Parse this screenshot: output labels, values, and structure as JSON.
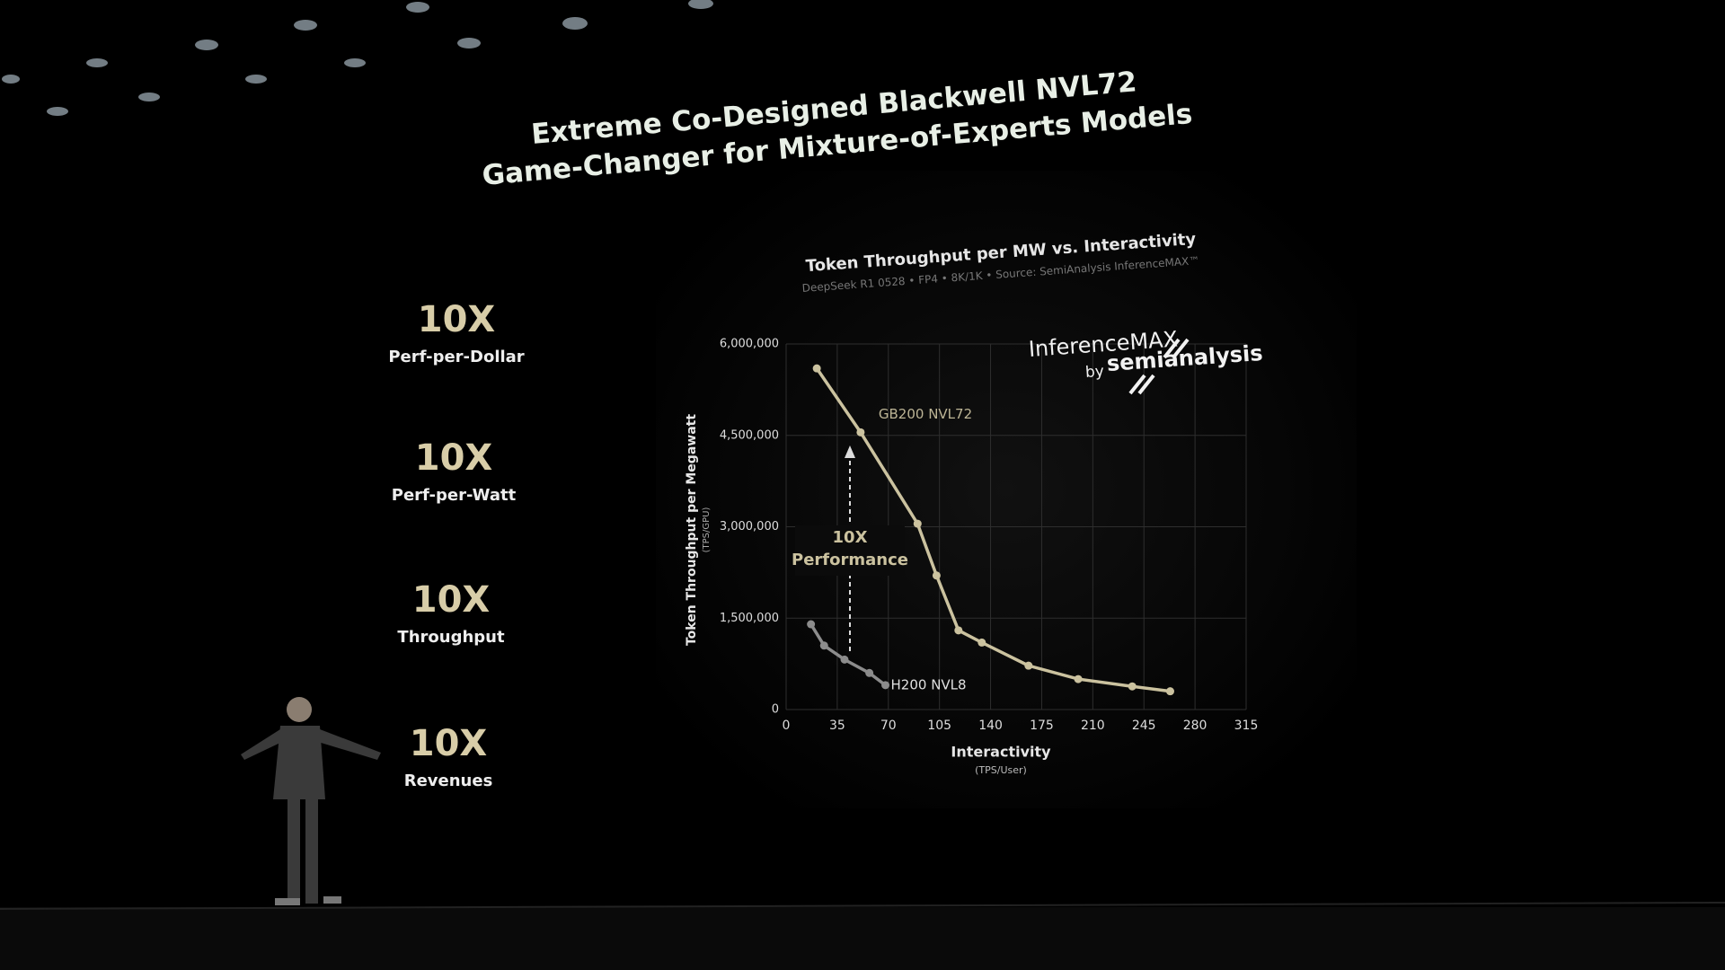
{
  "slide": {
    "title": [
      "Extreme Co-Designed Blackwell NVL72",
      "Game-Changer for Mixture-of-Experts Models"
    ],
    "stats": [
      {
        "value": "10X",
        "label": "Perf-per-Dollar"
      },
      {
        "value": "10X",
        "label": "Perf-per-Watt"
      },
      {
        "value": "10X",
        "label": "Throughput"
      },
      {
        "value": "10X",
        "label": "Revenues"
      }
    ],
    "logo": [
      "InferenceMAX",
      "by",
      "semianalysis"
    ]
  },
  "chart_data": {
    "type": "line",
    "title": "Token Throughput per MW vs. Interactivity",
    "subtitle": "DeepSeek R1 0528 • FP4 • 8K/1K • Source: SemiAnalysis InferenceMAX™",
    "xlabel": "Interactivity",
    "xlabel_sub": "(TPS/User)",
    "ylabel": "Token Throughput per Megawatt",
    "ylabel_sub": "(TPS/GPU)",
    "xlim": [
      0,
      315
    ],
    "xticks": [
      0,
      35,
      70,
      105,
      140,
      175,
      210,
      245,
      280,
      315
    ],
    "ylim": [
      0,
      6000000
    ],
    "yticks": [
      0,
      {
        "value": 1500000,
        "label": "1,500,000"
      },
      {
        "value": 3000000,
        "label": "3,000,000"
      },
      {
        "value": 4500000,
        "label": "4,500,000"
      },
      {
        "value": 6000000,
        "label": "6,000,000"
      }
    ],
    "grid": true,
    "series": [
      {
        "name": "GB200 NVL72",
        "color": "#cbc29f",
        "x": [
          21,
          51,
          90,
          103,
          118,
          134,
          166,
          200,
          237,
          263
        ],
        "values": [
          5600000,
          4550000,
          3050000,
          2200000,
          1300000,
          1100000,
          720000,
          500000,
          380000,
          300000
        ]
      },
      {
        "name": "H200 NVL8",
        "color": "#8c8c8c",
        "x": [
          17,
          26,
          40,
          57,
          68
        ],
        "values": [
          1400000,
          1050000,
          820000,
          600000,
          400000
        ]
      }
    ],
    "annotation": [
      "10X",
      "Performance"
    ]
  }
}
